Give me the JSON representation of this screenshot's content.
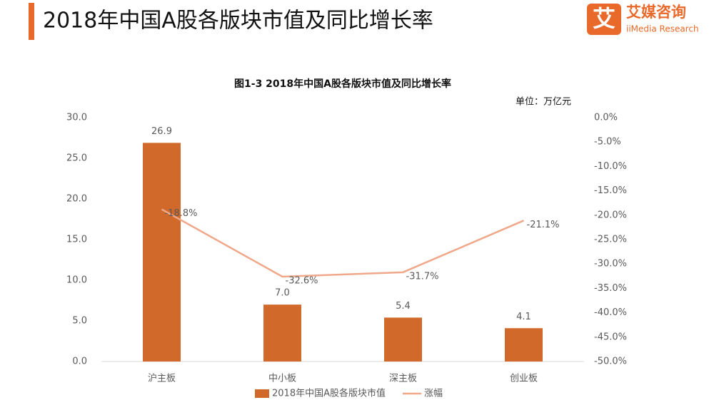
{
  "header": {
    "title": "2018年中国A股各版块市值及同比增长率",
    "logo_icon": "艾",
    "logo_name": "艾媒咨询",
    "logo_sub": "iiMedia Research"
  },
  "chart_data": {
    "type": "bar",
    "title": "图1-3 2018年中国A股各版块市值及同比增长率",
    "unit": "单位：万亿元",
    "categories": [
      "沪主板",
      "中小板",
      "深主板",
      "创业板"
    ],
    "series": [
      {
        "name": "2018年中国A股各版块市值",
        "type": "bar",
        "color": "#d0692a",
        "values": [
          26.9,
          7.0,
          5.4,
          4.1
        ],
        "value_labels": [
          "26.9",
          "7.0",
          "5.4",
          "4.1"
        ]
      },
      {
        "name": "涨幅",
        "type": "line",
        "axis": "y2",
        "color": "#f0a88a",
        "values": [
          -18.8,
          -32.6,
          -31.7,
          -21.1
        ],
        "value_labels": [
          "-18.8%",
          "-32.6%",
          "-31.7%",
          "-21.1%"
        ]
      }
    ],
    "ylim": [
      0,
      30
    ],
    "yticks": [
      {
        "value": 0,
        "label": "0.0"
      },
      {
        "value": 5,
        "label": "5.0"
      },
      {
        "value": 10,
        "label": "10.0"
      },
      {
        "value": 15,
        "label": "15.0"
      },
      {
        "value": 20,
        "label": "20.0"
      },
      {
        "value": 25,
        "label": "25.0"
      },
      {
        "value": 30,
        "label": "30.0"
      }
    ],
    "y2lim": [
      -50,
      0
    ],
    "y2ticks": [
      {
        "value": -50,
        "label": "-50.0%"
      },
      {
        "value": -45,
        "label": "-45.0%"
      },
      {
        "value": -40,
        "label": "-40.0%"
      },
      {
        "value": -35,
        "label": "-35.0%"
      },
      {
        "value": -30,
        "label": "-30.0%"
      },
      {
        "value": -25,
        "label": "-25.0%"
      },
      {
        "value": -20,
        "label": "-20.0%"
      },
      {
        "value": -15,
        "label": "-15.0%"
      },
      {
        "value": -10,
        "label": "-10.0%"
      },
      {
        "value": -5,
        "label": "-5.0%"
      },
      {
        "value": 0,
        "label": "0.0%"
      }
    ],
    "grid": false
  }
}
